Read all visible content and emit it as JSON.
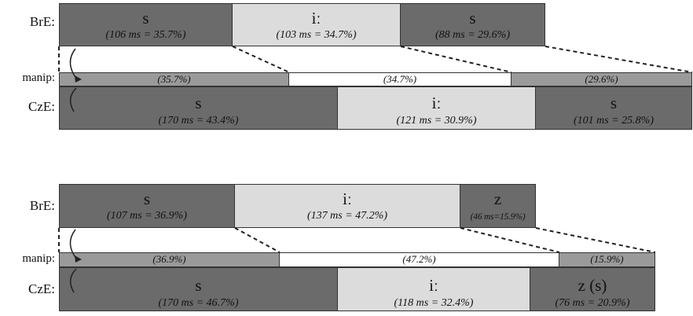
{
  "panels": [
    {
      "labels": {
        "bre": "BrE:",
        "manip": "manip:",
        "cze": "CzE:"
      },
      "bre": [
        {
          "phoneme": "s",
          "duration": "(106 ms = 35.7%)",
          "shade": "dark"
        },
        {
          "phoneme": "iː",
          "duration": "(103 ms = 34.7%)",
          "shade": "light"
        },
        {
          "phoneme": "s",
          "duration": "(88 ms = 29.6%)",
          "shade": "dark"
        }
      ],
      "manip": [
        {
          "pct": "(35.7%)",
          "shade": "manip-dark"
        },
        {
          "pct": "(34.7%)",
          "shade": "manip-white"
        },
        {
          "pct": "(29.6%)",
          "shade": "manip-dark"
        }
      ],
      "cze": [
        {
          "phoneme": "s",
          "duration": "(170 ms = 43.4%)",
          "shade": "dark"
        },
        {
          "phoneme": "iː",
          "duration": "(121 ms = 30.9%)",
          "shade": "light"
        },
        {
          "phoneme": "s",
          "duration": "(101 ms = 25.8%)",
          "shade": "dark"
        }
      ]
    },
    {
      "labels": {
        "bre": "BrE:",
        "manip": "manip:",
        "cze": "CzE:"
      },
      "bre": [
        {
          "phoneme": "s",
          "duration": "(107 ms = 36.9%)",
          "shade": "dark"
        },
        {
          "phoneme": "iː",
          "duration": "(137 ms = 47.2%)",
          "shade": "light"
        },
        {
          "phoneme": "z",
          "duration": "(46 ms=15.9%)",
          "shade": "dark"
        }
      ],
      "manip": [
        {
          "pct": "(36.9%)",
          "shade": "manip-dark"
        },
        {
          "pct": "(47.2%)",
          "shade": "manip-white"
        },
        {
          "pct": "(15.9%)",
          "shade": "manip-dark"
        }
      ],
      "cze": [
        {
          "phoneme": "s",
          "duration": "(170 ms = 46.7%)",
          "shade": "dark"
        },
        {
          "phoneme": "iː",
          "duration": "(118 ms = 32.4%)",
          "shade": "light"
        },
        {
          "phoneme": "z (s)",
          "duration": "(76 ms = 20.9%)",
          "shade": "dark"
        }
      ]
    }
  ]
}
